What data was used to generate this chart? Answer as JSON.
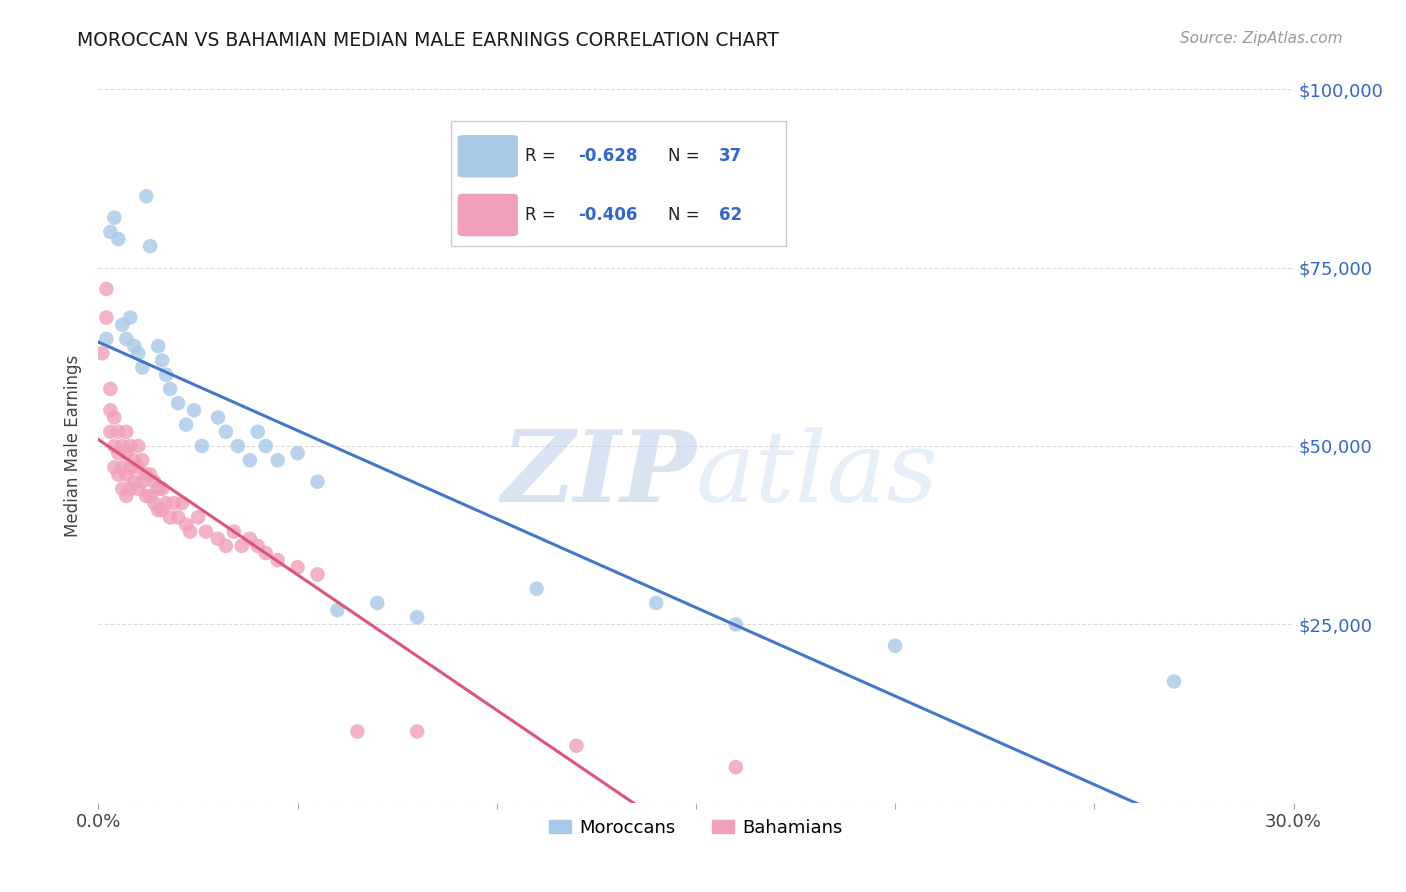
{
  "title": "MOROCCAN VS BAHAMIAN MEDIAN MALE EARNINGS CORRELATION CHART",
  "source": "Source: ZipAtlas.com",
  "ylabel": "Median Male Earnings",
  "xlim": [
    0.0,
    0.3
  ],
  "ylim": [
    0,
    100000
  ],
  "yticks": [
    0,
    25000,
    50000,
    75000,
    100000
  ],
  "ytick_labels": [
    "",
    "$25,000",
    "$50,000",
    "$75,000",
    "$100,000"
  ],
  "moroccans": {
    "R": -0.628,
    "N": 37,
    "color": "#A8C8E8",
    "line_color": "#4477CC",
    "x": [
      0.002,
      0.003,
      0.004,
      0.005,
      0.006,
      0.007,
      0.008,
      0.009,
      0.01,
      0.011,
      0.012,
      0.013,
      0.015,
      0.016,
      0.017,
      0.018,
      0.02,
      0.022,
      0.024,
      0.026,
      0.03,
      0.032,
      0.035,
      0.038,
      0.04,
      0.042,
      0.045,
      0.05,
      0.055,
      0.06,
      0.07,
      0.08,
      0.11,
      0.14,
      0.16,
      0.2,
      0.27
    ],
    "y": [
      65000,
      80000,
      82000,
      79000,
      67000,
      65000,
      68000,
      64000,
      63000,
      61000,
      85000,
      78000,
      64000,
      62000,
      60000,
      58000,
      56000,
      53000,
      55000,
      50000,
      54000,
      52000,
      50000,
      48000,
      52000,
      50000,
      48000,
      49000,
      45000,
      27000,
      28000,
      26000,
      30000,
      28000,
      25000,
      22000,
      17000
    ]
  },
  "bahamians": {
    "R": -0.406,
    "N": 62,
    "color": "#F0A0B8",
    "line_color": "#DD5577",
    "x": [
      0.001,
      0.002,
      0.002,
      0.003,
      0.003,
      0.003,
      0.004,
      0.004,
      0.004,
      0.005,
      0.005,
      0.005,
      0.006,
      0.006,
      0.006,
      0.007,
      0.007,
      0.007,
      0.007,
      0.008,
      0.008,
      0.008,
      0.009,
      0.009,
      0.01,
      0.01,
      0.01,
      0.011,
      0.011,
      0.012,
      0.012,
      0.013,
      0.013,
      0.014,
      0.014,
      0.015,
      0.015,
      0.016,
      0.016,
      0.017,
      0.018,
      0.019,
      0.02,
      0.021,
      0.022,
      0.023,
      0.025,
      0.027,
      0.03,
      0.032,
      0.034,
      0.036,
      0.038,
      0.04,
      0.042,
      0.045,
      0.05,
      0.055,
      0.065,
      0.08,
      0.12,
      0.16
    ],
    "y": [
      63000,
      68000,
      72000,
      58000,
      55000,
      52000,
      54000,
      50000,
      47000,
      52000,
      49000,
      46000,
      50000,
      47000,
      44000,
      52000,
      49000,
      46000,
      43000,
      50000,
      47000,
      44000,
      48000,
      45000,
      50000,
      47000,
      44000,
      48000,
      45000,
      46000,
      43000,
      46000,
      43000,
      45000,
      42000,
      44000,
      41000,
      44000,
      41000,
      42000,
      40000,
      42000,
      40000,
      42000,
      39000,
      38000,
      40000,
      38000,
      37000,
      36000,
      38000,
      36000,
      37000,
      36000,
      35000,
      34000,
      33000,
      32000,
      10000,
      10000,
      8000,
      5000
    ]
  },
  "watermark_zip": "ZIP",
  "watermark_atlas": "atlas",
  "background_color": "#ffffff",
  "grid_color": "#cccccc"
}
